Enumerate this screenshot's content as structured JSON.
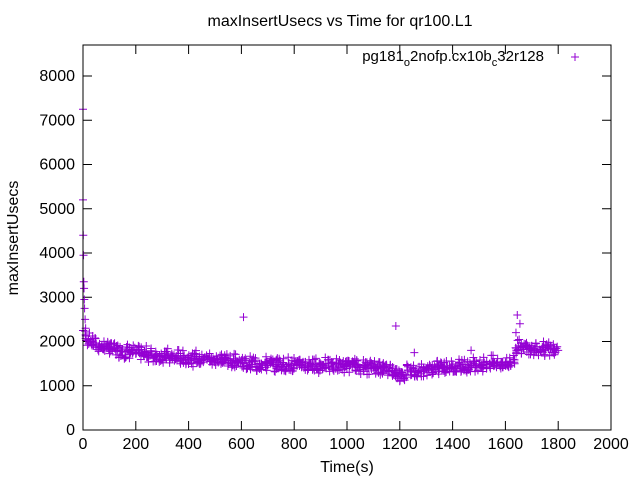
{
  "chart_data": {
    "type": "scatter",
    "title": "maxInsertUsecs vs Time for qr100.L1",
    "xlabel": "Time(s)",
    "ylabel": "maxInsertUsecs",
    "xlim": [
      0,
      2000
    ],
    "ylim": [
      0,
      8000
    ],
    "xticks": [
      0,
      200,
      400,
      600,
      800,
      1000,
      1200,
      1400,
      1600,
      1800,
      2000
    ],
    "yticks": [
      0,
      1000,
      2000,
      3000,
      4000,
      5000,
      6000,
      7000,
      8000
    ],
    "grid": false,
    "legend": {
      "placement": "top-right",
      "parts": [
        "pg181",
        "o",
        "2nofp.cx10b",
        "c",
        "32r128"
      ]
    },
    "series": [
      {
        "name": "pg181_o2nofp.cx10b_c32r128",
        "color": "#9400d3",
        "marker": "plus",
        "x_start": 0,
        "x_step": 10,
        "values": [
          2250,
          2150,
          2050,
          2000,
          1980,
          1950,
          1900,
          1880,
          1900,
          1850,
          1870,
          1820,
          1850,
          1800,
          1780,
          1830,
          1760,
          1800,
          1750,
          1790,
          1740,
          1760,
          1720,
          1700,
          1750,
          1680,
          1720,
          1650,
          1700,
          1680,
          1660,
          1640,
          1700,
          1620,
          1660,
          1600,
          1680,
          1620,
          1650,
          1590,
          1640,
          1620,
          1580,
          1660,
          1600,
          1570,
          1640,
          1590,
          1620,
          1560,
          1600,
          1580,
          1620,
          1550,
          1600,
          1570,
          1540,
          1610,
          1560,
          1530,
          1580,
          1500,
          1450,
          1520,
          1480,
          1550,
          1440,
          1500,
          1470,
          1520,
          1460,
          1500,
          1480,
          1450,
          1520,
          1470,
          1490,
          1440,
          1510,
          1460,
          1500,
          1480,
          1450,
          1520,
          1470,
          1440,
          1500,
          1460,
          1490,
          1430,
          1480,
          1460,
          1500,
          1440,
          1470,
          1420,
          1490,
          1450,
          1480,
          1430,
          1470,
          1450,
          1420,
          1480,
          1440,
          1410,
          1460,
          1430,
          1400,
          1450,
          1420,
          1400,
          1440,
          1380,
          1420,
          1360,
          1400,
          1340,
          1300,
          1280,
          1250,
          1300,
          1260,
          1350,
          1320,
          1380,
          1340,
          1300,
          1360,
          1330,
          1380,
          1350,
          1400,
          1370,
          1420,
          1380,
          1430,
          1400,
          1450,
          1410,
          1440,
          1420,
          1460,
          1430,
          1480,
          1450,
          1420,
          1470,
          1500,
          1460,
          1490,
          1470,
          1520,
          1480,
          1500,
          1540,
          1490,
          1520,
          1480,
          1530,
          1500,
          1480,
          1520,
          1600,
          1850,
          1900,
          1870,
          1820,
          1880,
          1850,
          1900,
          1840,
          1880,
          1820,
          1860,
          1800,
          1870,
          1830,
          1850,
          1760,
          1800
        ],
        "extra_points": [
          [
            0,
            7250
          ],
          [
            0,
            5200
          ],
          [
            1,
            4400
          ],
          [
            2,
            3950
          ],
          [
            3,
            3350
          ],
          [
            4,
            3200
          ],
          [
            5,
            2950
          ],
          [
            6,
            2750
          ],
          [
            8,
            2500
          ],
          [
            10,
            2300
          ],
          [
            608,
            2550
          ],
          [
            1185,
            2350
          ],
          [
            1645,
            2600
          ],
          [
            1655,
            2400
          ],
          [
            1640,
            2200
          ],
          [
            1470,
            1800
          ],
          [
            1255,
            1750
          ]
        ]
      }
    ]
  }
}
